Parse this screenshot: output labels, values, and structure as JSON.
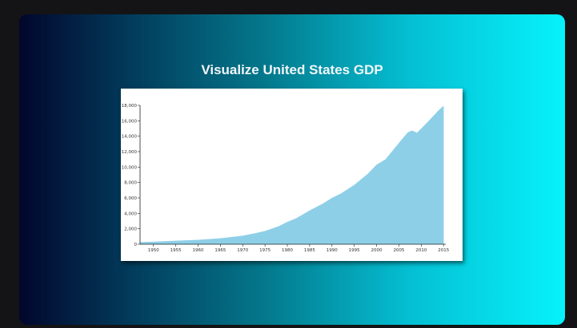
{
  "page": {
    "title": "Visualize United States GDP"
  },
  "colors": {
    "area_fill": "#8ecfe8",
    "axis": "#222222"
  },
  "chart_data": {
    "type": "area",
    "title": "Visualize United States GDP",
    "xlabel": "",
    "ylabel": "",
    "xlim": [
      1947,
      2015.5
    ],
    "ylim": [
      0,
      18000
    ],
    "grid": false,
    "x_ticks": [
      "1950",
      "1955",
      "1960",
      "1965",
      "1970",
      "1975",
      "1980",
      "1985",
      "1990",
      "1995",
      "2000",
      "2005",
      "2010",
      "2015"
    ],
    "y_ticks": [
      "0",
      "2,000",
      "4,000",
      "6,000",
      "8,000",
      "10,000",
      "12,000",
      "14,000",
      "16,000",
      "18,000"
    ],
    "x_tick_values": [
      1950,
      1955,
      1960,
      1965,
      1970,
      1975,
      1980,
      1985,
      1990,
      1995,
      2000,
      2005,
      2010,
      2015
    ],
    "y_tick_values": [
      0,
      2000,
      4000,
      6000,
      8000,
      10000,
      12000,
      14000,
      16000,
      18000
    ],
    "x": [
      1947,
      1950,
      1955,
      1960,
      1965,
      1970,
      1973,
      1975,
      1978,
      1980,
      1982,
      1985,
      1988,
      1990,
      1992,
      1995,
      1998,
      2000,
      2002,
      2005,
      2007,
      2008,
      2009,
      2010,
      2012,
      2014,
      2015
    ],
    "values": [
      243,
      300,
      425,
      543,
      743,
      1075,
      1425,
      1688,
      2294,
      2863,
      3344,
      4347,
      5252,
      5980,
      6539,
      7664,
      9089,
      10285,
      10978,
      13094,
      14478,
      14719,
      14419,
      14964,
      16155,
      17393,
      17900
    ]
  }
}
